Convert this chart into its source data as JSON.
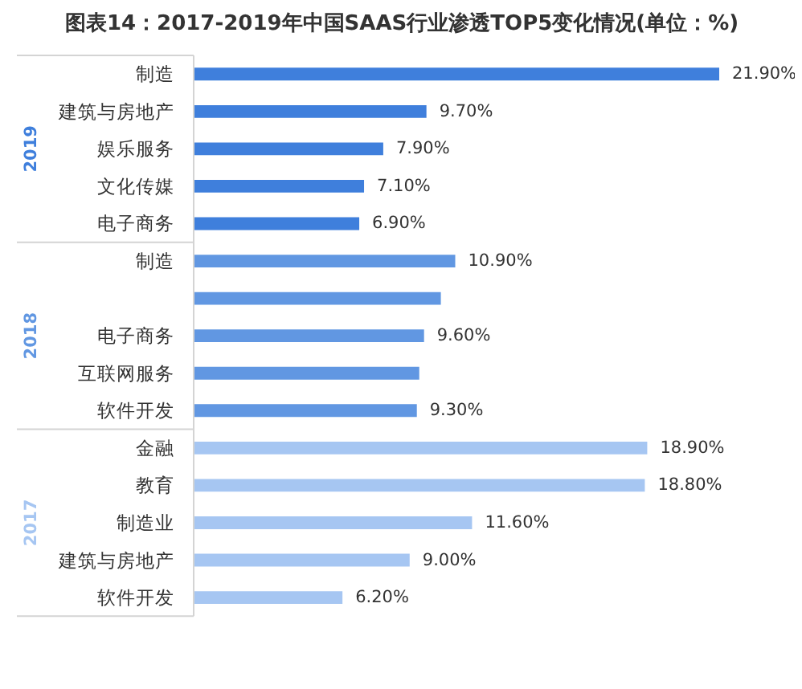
{
  "chart_data": {
    "type": "bar",
    "orientation": "horizontal",
    "title": "图表14：2017-2019年中国SAAS行业渗透TOP5变化情况(单位：%)",
    "categories": [
      "制造",
      "建筑与房地产",
      "娱乐服务",
      "文化传媒",
      "电子商务",
      "制造",
      null,
      "电子商务",
      "互联网服务",
      "软件开发",
      "金融",
      "教育",
      "制造业",
      "建筑与房地产",
      "软件开发"
    ],
    "series": [
      {
        "name": "2019",
        "color": "#3f7fdc",
        "values": [
          21.9,
          9.7,
          7.9,
          7.1,
          6.9,
          null,
          null,
          null,
          null,
          null,
          null,
          null,
          null,
          null,
          null
        ],
        "value_labels": [
          "21.90%",
          "9.70%",
          "7.90%",
          "7.10%",
          "6.90%",
          null,
          null,
          null,
          null,
          null,
          null,
          null,
          null,
          null,
          null
        ]
      },
      {
        "name": "2018",
        "color": "#6197e2",
        "values": [
          null,
          null,
          null,
          null,
          null,
          10.9,
          10.3,
          9.6,
          9.4,
          9.3,
          null,
          null,
          null,
          null,
          null
        ],
        "value_labels": [
          null,
          null,
          null,
          null,
          null,
          "10.90%",
          null,
          "9.60%",
          null,
          "9.30%",
          null,
          null,
          null,
          null,
          null
        ]
      },
      {
        "name": "2017",
        "color": "#a6c6f2",
        "values": [
          null,
          null,
          null,
          null,
          null,
          null,
          null,
          null,
          null,
          null,
          18.9,
          18.8,
          11.6,
          9.0,
          6.2
        ],
        "value_labels": [
          null,
          null,
          null,
          null,
          null,
          null,
          null,
          null,
          null,
          null,
          "18.90%",
          "18.80%",
          "11.60%",
          "9.00%",
          "6.20%"
        ]
      }
    ]
  }
}
